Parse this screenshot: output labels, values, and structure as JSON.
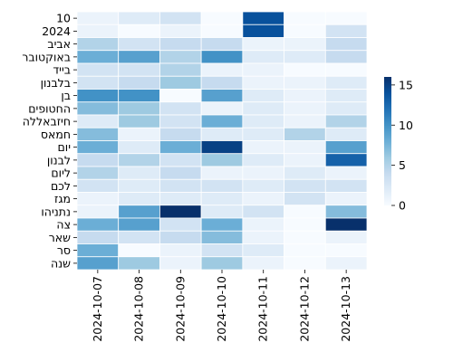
{
  "chart_data": {
    "type": "heatmap",
    "title": "",
    "xlabel": "",
    "ylabel": "",
    "x": [
      "2024-10-07",
      "2024-10-08",
      "2024-10-09",
      "2024-10-10",
      "2024-10-11",
      "2024-10-12",
      "2024-10-13"
    ],
    "y": [
      "10",
      "2024",
      "אביב",
      "באוקטובר",
      "בייד",
      "בלבנון",
      "בן",
      "החטופים",
      "חיזבאללה",
      "חמאס",
      "יום",
      "לבנון",
      "ליום",
      "לכם",
      "מגז",
      "נתניהו",
      "צה",
      "שאר",
      "סר",
      "שנה"
    ],
    "values": [
      [
        1,
        2,
        3,
        0,
        14,
        0,
        0
      ],
      [
        1,
        0,
        1,
        0,
        14,
        0,
        3
      ],
      [
        5,
        3,
        4,
        4,
        1,
        1,
        4
      ],
      [
        8,
        9,
        5,
        10,
        2,
        2,
        4
      ],
      [
        3,
        3,
        5,
        1,
        1,
        0,
        0
      ],
      [
        3,
        4,
        6,
        4,
        1,
        1,
        2
      ],
      [
        10,
        10,
        0,
        9,
        2,
        1,
        2
      ],
      [
        7,
        6,
        3,
        1,
        2,
        1,
        2
      ],
      [
        2,
        6,
        3,
        8,
        2,
        1,
        5
      ],
      [
        7,
        1,
        4,
        2,
        2,
        5,
        2
      ],
      [
        8,
        2,
        8,
        15,
        1,
        1,
        9
      ],
      [
        4,
        5,
        3,
        6,
        2,
        1,
        13
      ],
      [
        5,
        2,
        4,
        1,
        1,
        2,
        1
      ],
      [
        3,
        2,
        3,
        3,
        2,
        3,
        3
      ],
      [
        1,
        2,
        2,
        2,
        1,
        3,
        1
      ],
      [
        1,
        9,
        16,
        2,
        3,
        0,
        7
      ],
      [
        8,
        9,
        3,
        8,
        1,
        0,
        16
      ],
      [
        4,
        3,
        4,
        7,
        1,
        0,
        1
      ],
      [
        8,
        0,
        1,
        3,
        2,
        0,
        0
      ],
      [
        9,
        6,
        1,
        6,
        1,
        0,
        1
      ]
    ],
    "colorbar": {
      "min": 0,
      "max": 16,
      "ticks": [
        0,
        5,
        10,
        15
      ]
    },
    "colormap": [
      "#f7fbff",
      "#deebf7",
      "#c6dbef",
      "#9ecae1",
      "#6baed6",
      "#4292c6",
      "#2171b5",
      "#08519c",
      "#08306b"
    ],
    "grid": false,
    "legend": "right"
  }
}
